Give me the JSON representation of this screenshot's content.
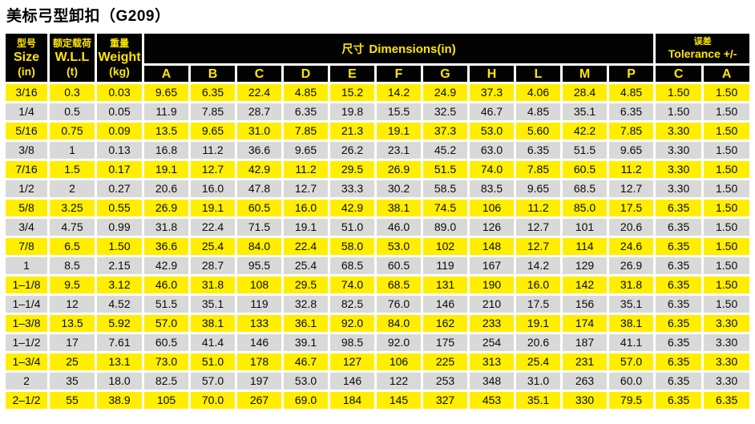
{
  "title": "美标弓型卸扣（G209）",
  "colors": {
    "header_bg": "#030303",
    "header_text": "#ffe600",
    "row_yellow": "#ffee00",
    "row_gray": "#d9d9d9"
  },
  "table": {
    "header": {
      "size": {
        "zh": "型号",
        "en": "Size",
        "unit": "(in)"
      },
      "wll": {
        "zh": "额定载荷",
        "en": "W.L.L",
        "unit": "(t)"
      },
      "weight": {
        "zh": "重量",
        "en": "Weight",
        "unit": "(kg)"
      },
      "dimensions": {
        "zh": "尺寸",
        "en": "Dimensions(in)"
      },
      "tolerance": {
        "zh": "误差",
        "en": "Tolerance +/-"
      },
      "dim_letters": [
        "A",
        "B",
        "C",
        "D",
        "E",
        "F",
        "G",
        "H",
        "L",
        "M",
        "P"
      ],
      "tolerance_letters": [
        "C",
        "A"
      ]
    },
    "rows": [
      [
        "3/16",
        "0.3",
        "0.03",
        "9.65",
        "6.35",
        "22.4",
        "4.85",
        "15.2",
        "14.2",
        "24.9",
        "37.3",
        "4.06",
        "28.4",
        "4.85",
        "1.50",
        "1.50"
      ],
      [
        "1/4",
        "0.5",
        "0.05",
        "11.9",
        "7.85",
        "28.7",
        "6.35",
        "19.8",
        "15.5",
        "32.5",
        "46.7",
        "4.85",
        "35.1",
        "6.35",
        "1.50",
        "1.50"
      ],
      [
        "5/16",
        "0.75",
        "0.09",
        "13.5",
        "9.65",
        "31.0",
        "7.85",
        "21.3",
        "19.1",
        "37.3",
        "53.0",
        "5.60",
        "42.2",
        "7.85",
        "3.30",
        "1.50"
      ],
      [
        "3/8",
        "1",
        "0.13",
        "16.8",
        "11.2",
        "36.6",
        "9.65",
        "26.2",
        "23.1",
        "45.2",
        "63.0",
        "6.35",
        "51.5",
        "9.65",
        "3.30",
        "1.50"
      ],
      [
        "7/16",
        "1.5",
        "0.17",
        "19.1",
        "12.7",
        "42.9",
        "11.2",
        "29.5",
        "26.9",
        "51.5",
        "74.0",
        "7.85",
        "60.5",
        "11.2",
        "3.30",
        "1.50"
      ],
      [
        "1/2",
        "2",
        "0.27",
        "20.6",
        "16.0",
        "47.8",
        "12.7",
        "33.3",
        "30.2",
        "58.5",
        "83.5",
        "9.65",
        "68.5",
        "12.7",
        "3.30",
        "1.50"
      ],
      [
        "5/8",
        "3.25",
        "0.55",
        "26.9",
        "19.1",
        "60.5",
        "16.0",
        "42.9",
        "38.1",
        "74.5",
        "106",
        "11.2",
        "85.0",
        "17.5",
        "6.35",
        "1.50"
      ],
      [
        "3/4",
        "4.75",
        "0.99",
        "31.8",
        "22.4",
        "71.5",
        "19.1",
        "51.0",
        "46.0",
        "89.0",
        "126",
        "12.7",
        "101",
        "20.6",
        "6.35",
        "1.50"
      ],
      [
        "7/8",
        "6.5",
        "1.50",
        "36.6",
        "25.4",
        "84.0",
        "22.4",
        "58.0",
        "53.0",
        "102",
        "148",
        "12.7",
        "114",
        "24.6",
        "6.35",
        "1.50"
      ],
      [
        "1",
        "8.5",
        "2.15",
        "42.9",
        "28.7",
        "95.5",
        "25.4",
        "68.5",
        "60.5",
        "119",
        "167",
        "14.2",
        "129",
        "26.9",
        "6.35",
        "1.50"
      ],
      [
        "1–1/8",
        "9.5",
        "3.12",
        "46.0",
        "31.8",
        "108",
        "29.5",
        "74.0",
        "68.5",
        "131",
        "190",
        "16.0",
        "142",
        "31.8",
        "6.35",
        "1.50"
      ],
      [
        "1–1/4",
        "12",
        "4.52",
        "51.5",
        "35.1",
        "119",
        "32.8",
        "82.5",
        "76.0",
        "146",
        "210",
        "17.5",
        "156",
        "35.1",
        "6.35",
        "1.50"
      ],
      [
        "1–3/8",
        "13.5",
        "5.92",
        "57.0",
        "38.1",
        "133",
        "36.1",
        "92.0",
        "84.0",
        "162",
        "233",
        "19.1",
        "174",
        "38.1",
        "6.35",
        "3.30"
      ],
      [
        "1–1/2",
        "17",
        "7.61",
        "60.5",
        "41.4",
        "146",
        "39.1",
        "98.5",
        "92.0",
        "175",
        "254",
        "20.6",
        "187",
        "41.1",
        "6.35",
        "3.30"
      ],
      [
        "1–3/4",
        "25",
        "13.1",
        "73.0",
        "51.0",
        "178",
        "46.7",
        "127",
        "106",
        "225",
        "313",
        "25.4",
        "231",
        "57.0",
        "6.35",
        "3.30"
      ],
      [
        "2",
        "35",
        "18.0",
        "82.5",
        "57.0",
        "197",
        "53.0",
        "146",
        "122",
        "253",
        "348",
        "31.0",
        "263",
        "60.0",
        "6.35",
        "3.30"
      ],
      [
        "2–1/2",
        "55",
        "38.9",
        "105",
        "70.0",
        "267",
        "69.0",
        "184",
        "145",
        "327",
        "453",
        "35.1",
        "330",
        "79.5",
        "6.35",
        "6.35"
      ]
    ],
    "column_keys": [
      "size",
      "wll",
      "weight",
      "A",
      "B",
      "C",
      "D",
      "E",
      "F",
      "G",
      "H",
      "L",
      "M",
      "P",
      "tol-C",
      "tol-A"
    ]
  }
}
